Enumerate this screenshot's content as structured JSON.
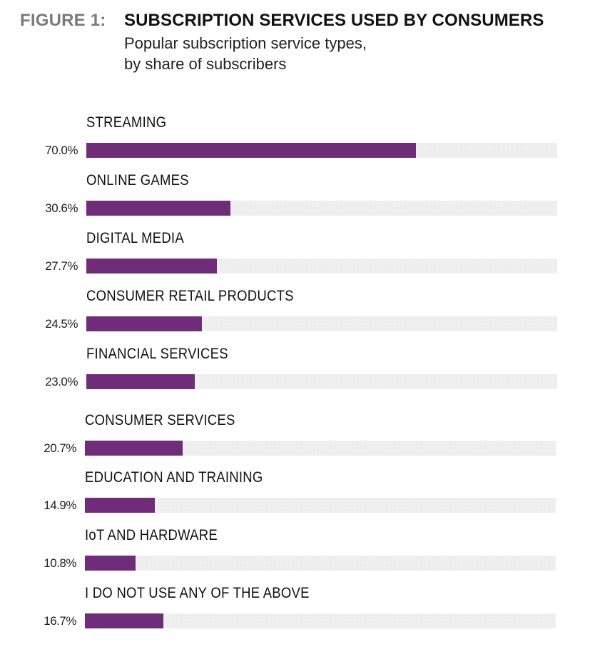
{
  "header": {
    "figure_label": "FIGURE 1:",
    "title": "SUBSCRIPTION SERVICES USED BY CONSUMERS",
    "subtitle_line1": "Popular subscription service types,",
    "subtitle_line2": "by share of subscribers"
  },
  "colors": {
    "bar": "#6f2c78",
    "track": "#efefef",
    "figure_label": "#7a7a7a"
  },
  "chart_data": {
    "type": "bar",
    "orientation": "horizontal",
    "title": "SUBSCRIPTION SERVICES USED BY CONSUMERS",
    "subtitle": "Popular subscription service types, by share of subscribers",
    "xlabel": "",
    "ylabel": "",
    "xlim": [
      0,
      100
    ],
    "grid": false,
    "unit": "%",
    "categories": [
      "STREAMING",
      "ONLINE GAMES",
      "DIGITAL MEDIA",
      "CONSUMER RETAIL PRODUCTS",
      "FINANCIAL SERVICES",
      "CONSUMER SERVICES",
      "EDUCATION AND TRAINING",
      "IoT AND HARDWARE",
      "I DO NOT USE ANY OF THE ABOVE"
    ],
    "values": [
      70.0,
      30.6,
      27.7,
      24.5,
      23.0,
      20.7,
      14.9,
      10.8,
      16.7
    ],
    "value_labels": [
      "70.0%",
      "30.6%",
      "27.7%",
      "24.5%",
      "23.0%",
      "20.7%",
      "14.9%",
      "10.8%",
      "16.7%"
    ]
  }
}
